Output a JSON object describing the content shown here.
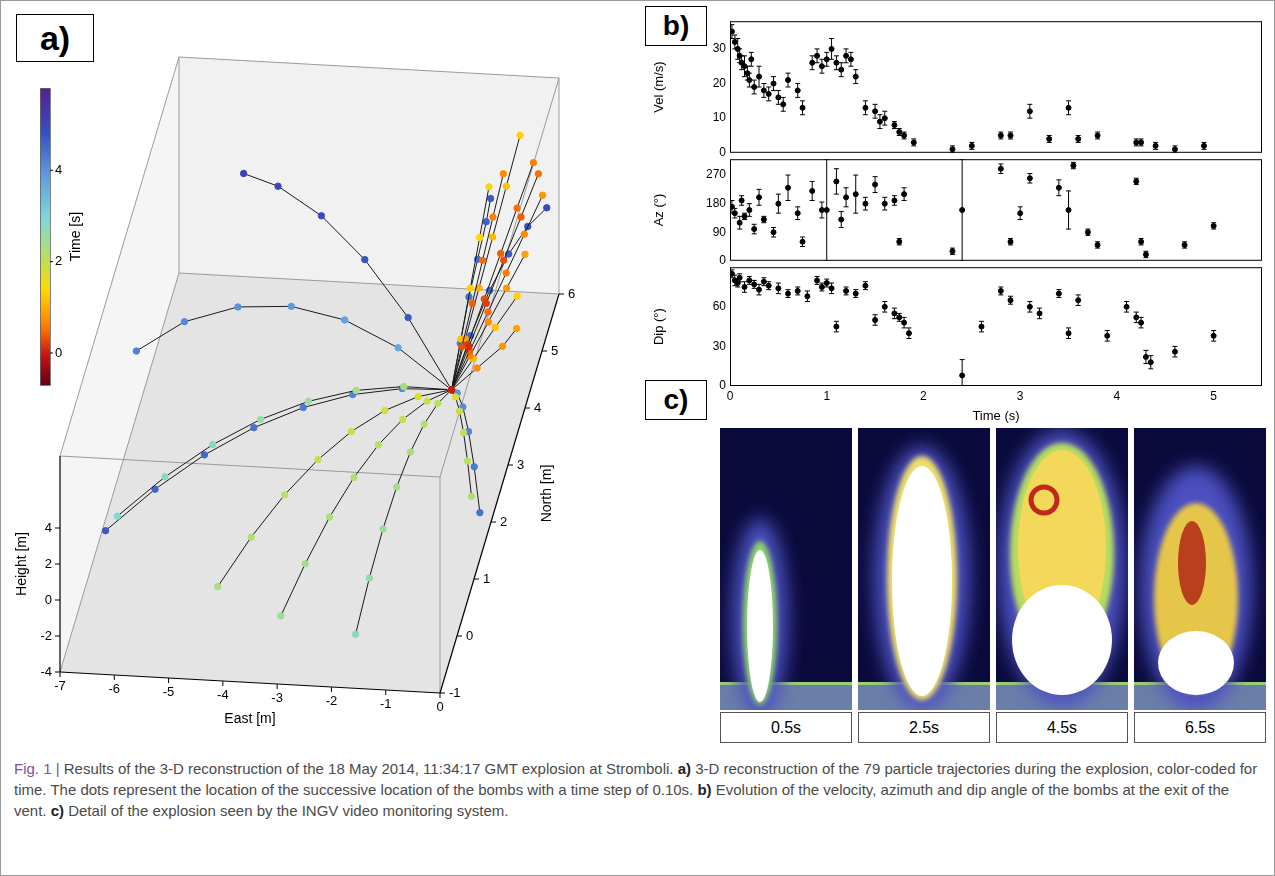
{
  "chart_data": [
    {
      "panel": "a)",
      "type": "scatter3d",
      "marker": "circle",
      "color": "#1a1a1a",
      "x_label": "East [m]",
      "y_label": "North [m]",
      "z_label": "Height [m]",
      "xlim": [
        -7,
        0
      ],
      "xticks": [
        -7,
        -6,
        -5,
        -4,
        -3,
        -2,
        -1,
        0
      ],
      "ylim": [
        -1,
        6
      ],
      "yticks": [
        -1,
        0,
        1,
        2,
        3,
        4,
        5,
        6
      ],
      "zlim": [
        -4,
        8
      ],
      "zticks": [
        -4,
        -2,
        0,
        2,
        4
      ],
      "colorbar": {
        "label": "Time [s]",
        "range": [
          -0.7,
          5.8
        ],
        "ticks": [
          0,
          2,
          4
        ]
      },
      "time_step": 0.1,
      "trajectories": [
        {
          "t_start": 0.0,
          "east": [
            -1,
            -0.8,
            -0.6,
            -0.4,
            -0.2,
            0
          ],
          "north": [
            3,
            3.4,
            3.8,
            4.2,
            4.6,
            5
          ],
          "height": [
            0,
            1.2,
            2.4,
            3.6,
            4.8,
            6
          ]
        },
        {
          "t_start": 0.1,
          "east": [
            -1,
            -0.85,
            -0.7,
            -0.55,
            -0.4,
            -0.25
          ],
          "north": [
            3,
            3.5,
            4,
            4.5,
            5,
            5.5
          ],
          "height": [
            0,
            1,
            2,
            3,
            4,
            5
          ]
        },
        {
          "t_start": 0.2,
          "east": [
            -1,
            -0.9,
            -0.8,
            -0.7,
            -0.6,
            -0.5
          ],
          "north": [
            3,
            3.3,
            3.6,
            3.9,
            4.2,
            4.5
          ],
          "height": [
            0,
            1.5,
            3,
            4.5,
            6,
            7.5
          ]
        },
        {
          "t_start": 0.3,
          "east": [
            -1,
            -0.8,
            -0.6,
            -0.4,
            -0.2,
            0
          ],
          "north": [
            3,
            3.45,
            3.9,
            4.35,
            4.8,
            5.25
          ],
          "height": [
            0,
            0.8,
            1.6,
            2.4,
            3.2,
            4
          ]
        },
        {
          "t_start": 0.5,
          "east": [
            -1,
            -0.75,
            -0.5,
            -0.25,
            0
          ],
          "north": [
            3,
            3.3,
            3.6,
            3.9,
            4.2
          ],
          "height": [
            0,
            1,
            2,
            3,
            4
          ]
        },
        {
          "t_start": 0.8,
          "east": [
            -1,
            -0.9,
            -0.8,
            -0.7,
            -0.6,
            -0.5
          ],
          "north": [
            3,
            3.5,
            4,
            4.5,
            5,
            5.5
          ],
          "height": [
            0,
            1.3,
            2.6,
            3.9,
            5.2,
            6.5
          ]
        },
        {
          "t_start": 1.0,
          "east": [
            -1,
            -0.7,
            -0.4,
            -0.1
          ],
          "north": [
            3,
            3.35,
            3.7,
            4.05
          ],
          "height": [
            0,
            0.7,
            1.4,
            2.1
          ]
        },
        {
          "t_start": 1.1,
          "east": [
            -1,
            -0.95,
            -0.9,
            -0.85,
            -0.8
          ],
          "north": [
            3,
            3.4,
            3.8,
            4.2,
            4.6
          ],
          "height": [
            0,
            1.6,
            3.2,
            4.8,
            6.4
          ]
        },
        {
          "t_start": 0.6,
          "east": [
            -1,
            -0.6,
            -0.2,
            0
          ],
          "north": [
            3,
            3.25,
            3.5,
            3.7
          ],
          "height": [
            0,
            0.5,
            1,
            1.4
          ]
        },
        {
          "t_start": 1.6,
          "east": [
            -1,
            -1.5,
            -2,
            -2.5,
            -3,
            -3.5,
            -4,
            -4.5
          ],
          "north": [
            3,
            2.6,
            2.2,
            1.8,
            1.4,
            1,
            0.6,
            0.2
          ],
          "height": [
            0,
            0.8,
            1.2,
            1.2,
            0.8,
            0,
            -1.2,
            -2.8
          ]
        },
        {
          "t_start": 1.8,
          "east": [
            -1,
            -1.3,
            -1.6,
            -1.9,
            -2.2,
            -2.5,
            -2.8,
            -3.1
          ],
          "north": [
            3,
            2.5,
            2,
            1.5,
            1,
            0.5,
            0,
            -0.5
          ],
          "height": [
            0,
            0.9,
            1.4,
            1.5,
            1.2,
            0.5,
            -0.6,
            -2
          ]
        },
        {
          "t_start": 2.0,
          "east": [
            -1,
            -1.1,
            -1.2,
            -1.3,
            -1.4,
            -1.5,
            -1.6,
            -1.7
          ],
          "north": [
            3,
            2.5,
            2,
            1.5,
            1,
            0.5,
            0,
            -0.5
          ],
          "height": [
            0,
            0.8,
            1.2,
            1.2,
            0.8,
            0,
            -1.2,
            -2.8
          ]
        },
        {
          "t_start": 1.7,
          "east": [
            -1,
            -0.8,
            -0.6,
            -0.4,
            -0.2,
            0
          ],
          "north": [
            3,
            2.6,
            2.2,
            1.8,
            1.4,
            1
          ],
          "height": [
            0,
            0.9,
            1.4,
            1.5,
            1.2,
            0.5
          ]
        },
        {
          "t_start": 2.2,
          "east": [
            -1,
            -1.8,
            -2.6,
            -3.4,
            -4.2,
            -5,
            -5.8,
            -6.6
          ],
          "north": [
            3,
            2.7,
            2.4,
            2.1,
            1.8,
            1.5,
            1.2,
            0.9
          ],
          "height": [
            0,
            1,
            1.6,
            1.8,
            1.6,
            1,
            0,
            -1.4
          ]
        },
        {
          "t_start": 3.6,
          "east": [
            -1,
            -2,
            -3,
            -4,
            -5,
            -6,
            -6.9
          ],
          "north": [
            3,
            3,
            3,
            3,
            3,
            3,
            3
          ],
          "height": [
            0,
            2.2,
            3.6,
            4.2,
            4,
            3,
            1.2
          ]
        },
        {
          "t_start": 4.0,
          "east": [
            -1,
            -1.8,
            -2.6,
            -3.4,
            -4.2,
            -5,
            -5.8,
            -6.6
          ],
          "north": [
            3,
            2.6,
            2.2,
            1.8,
            1.4,
            1,
            0.6,
            0.2
          ],
          "height": [
            0,
            1.2,
            2,
            2.4,
            2.4,
            2,
            1.2,
            0
          ]
        },
        {
          "t_start": 4.2,
          "east": [
            -1,
            -0.9,
            -0.8,
            -0.7,
            -0.6,
            -0.55
          ],
          "north": [
            3,
            3.2,
            3.4,
            3.6,
            3.8,
            3.9
          ],
          "height": [
            0,
            2,
            4,
            5.5,
            7,
            8
          ]
        },
        {
          "t_start": 4.4,
          "east": [
            -1,
            -0.8,
            -0.6,
            -0.4,
            -0.2,
            0
          ],
          "north": [
            3,
            3.5,
            4,
            4.5,
            5,
            5.5
          ],
          "height": [
            0,
            1.5,
            2.5,
            3,
            3,
            2.5
          ]
        },
        {
          "t_start": 3.9,
          "east": [
            -1,
            -0.8,
            -0.6,
            -0.4,
            -0.2,
            0
          ],
          "north": [
            3,
            2.7,
            2.4,
            2.1,
            1.8,
            1.5
          ],
          "height": [
            0,
            0.8,
            1,
            0.6,
            -0.4,
            -2
          ]
        },
        {
          "t_start": 4.6,
          "east": [
            -1,
            -2,
            -3,
            -4,
            -5,
            -5.8
          ],
          "north": [
            3,
            3.6,
            4.2,
            4.8,
            5.4,
            5.9
          ],
          "height": [
            0,
            2,
            3.2,
            3.6,
            3.2,
            2.2
          ]
        }
      ]
    },
    {
      "panel": "b)",
      "type": "scatter",
      "grid": false,
      "x_label": "Time (s)",
      "xlim": [
        0,
        5.5
      ],
      "xticks": [
        0,
        1,
        2,
        3,
        4,
        5
      ],
      "subplots": [
        {
          "y_label": "Vel (m/s)",
          "ylim": [
            0,
            38
          ],
          "yticks": [
            0,
            10,
            20,
            30
          ],
          "tick_labels": "y",
          "marker": "circle",
          "color": "#000000",
          "x": [
            0.02,
            0.05,
            0.08,
            0.1,
            0.12,
            0.15,
            0.18,
            0.2,
            0.22,
            0.25,
            0.3,
            0.35,
            0.4,
            0.45,
            0.5,
            0.55,
            0.6,
            0.7,
            0.75,
            0.85,
            0.9,
            0.95,
            1.0,
            1.05,
            1.1,
            1.15,
            1.2,
            1.25,
            1.3,
            1.4,
            1.5,
            1.55,
            1.6,
            1.7,
            1.75,
            1.8,
            1.9,
            2.3,
            2.5,
            2.8,
            2.9,
            3.1,
            3.3,
            3.5,
            3.6,
            3.8,
            4.2,
            4.25,
            4.4,
            4.6,
            4.9
          ],
          "values": [
            35,
            32,
            30,
            28,
            26,
            25,
            23,
            21,
            27,
            19,
            22,
            18,
            17,
            20,
            16,
            14,
            21,
            18,
            13,
            26,
            28,
            25,
            27,
            30,
            26,
            24,
            28,
            27,
            22,
            13,
            12,
            9,
            10,
            8,
            6,
            5,
            3,
            1,
            2,
            5,
            5,
            12,
            4,
            13,
            4,
            5,
            3,
            3,
            2,
            1,
            2
          ],
          "errors": [
            2,
            2,
            3,
            2,
            2,
            3,
            2,
            2,
            2,
            2,
            3,
            2,
            2,
            2,
            2,
            2,
            2,
            2,
            2,
            2,
            2,
            2,
            2,
            3,
            2,
            2,
            2,
            2,
            2,
            2,
            2,
            2,
            2,
            1,
            1,
            1,
            1,
            1,
            1,
            1,
            1,
            2,
            1,
            2,
            1,
            1,
            1,
            1,
            1,
            1,
            1
          ]
        },
        {
          "y_label": "Az (°)",
          "ylim": [
            0,
            320
          ],
          "yticks": [
            0,
            90,
            180,
            270
          ],
          "tick_labels": "y",
          "marker": "circle",
          "color": "#000000",
          "x": [
            0.02,
            0.05,
            0.1,
            0.12,
            0.15,
            0.2,
            0.25,
            0.3,
            0.35,
            0.45,
            0.5,
            0.6,
            0.7,
            0.75,
            0.85,
            0.95,
            1.0,
            1.1,
            1.15,
            1.2,
            1.3,
            1.4,
            1.5,
            1.6,
            1.7,
            1.75,
            1.8,
            2.3,
            2.4,
            2.8,
            2.9,
            3.0,
            3.1,
            3.4,
            3.5,
            3.55,
            3.7,
            3.8,
            4.2,
            4.25,
            4.3,
            4.7,
            5.0
          ],
          "values": [
            170,
            150,
            120,
            190,
            140,
            160,
            100,
            200,
            130,
            90,
            180,
            230,
            150,
            60,
            220,
            160,
            160,
            250,
            130,
            200,
            210,
            180,
            240,
            180,
            190,
            60,
            210,
            30,
            160,
            290,
            60,
            150,
            260,
            230,
            160,
            300,
            90,
            50,
            250,
            60,
            20,
            50,
            110
          ],
          "errors": [
            20,
            15,
            20,
            15,
            10,
            20,
            15,
            25,
            10,
            15,
            30,
            40,
            20,
            15,
            30,
            25,
            160,
            40,
            25,
            30,
            60,
            20,
            25,
            20,
            15,
            10,
            20,
            10,
            160,
            15,
            10,
            20,
            15,
            25,
            60,
            10,
            10,
            10,
            10,
            10,
            10,
            10,
            10
          ]
        },
        {
          "y_label": "Dip (°)",
          "ylim": [
            0,
            90
          ],
          "yticks": [
            0,
            30,
            60
          ],
          "marker": "circle",
          "color": "#000000",
          "x": [
            0.02,
            0.05,
            0.08,
            0.1,
            0.15,
            0.2,
            0.25,
            0.3,
            0.35,
            0.4,
            0.5,
            0.6,
            0.7,
            0.8,
            0.9,
            0.95,
            1.0,
            1.05,
            1.1,
            1.2,
            1.3,
            1.4,
            1.5,
            1.6,
            1.7,
            1.75,
            1.8,
            1.85,
            2.4,
            2.6,
            2.8,
            2.9,
            3.1,
            3.2,
            3.4,
            3.5,
            3.6,
            3.9,
            4.1,
            4.2,
            4.25,
            4.3,
            4.35,
            4.6,
            5.0
          ],
          "values": [
            85,
            80,
            78,
            82,
            75,
            80,
            77,
            73,
            79,
            76,
            74,
            70,
            72,
            68,
            80,
            75,
            78,
            74,
            45,
            72,
            70,
            76,
            50,
            60,
            55,
            52,
            48,
            40,
            8,
            45,
            72,
            65,
            60,
            55,
            70,
            40,
            65,
            38,
            60,
            52,
            48,
            22,
            18,
            26,
            38
          ],
          "errors": [
            3,
            4,
            3,
            3,
            4,
            3,
            3,
            4,
            3,
            3,
            4,
            3,
            3,
            4,
            3,
            3,
            3,
            4,
            4,
            3,
            3,
            3,
            4,
            4,
            4,
            3,
            4,
            4,
            12,
            4,
            3,
            3,
            4,
            4,
            3,
            4,
            4,
            4,
            4,
            4,
            4,
            5,
            5,
            4,
            4
          ]
        }
      ]
    }
  ],
  "video_frames": {
    "panel": "c)",
    "labels": [
      "0.5s",
      "2.5s",
      "4.5s",
      "6.5s"
    ]
  },
  "caption": {
    "label": "Fig. 1 |",
    "parts": [
      "Results of the 3-D reconstruction of the 18 May 2014, 11:34:17 GMT explosion at Stromboli. ",
      "a)",
      " 3-D reconstruction of the 79 particle trajectories during the explosion, color-coded for time. The dots represent the location of the successive location of the bombs with a time step of 0.10s. ",
      "b)",
      " Evolution of the velocity, azimuth and dip angle of the bombs at the exit of the vent. ",
      "c)",
      " Detail of the explosion seen by the INGV video monitoring system."
    ]
  }
}
